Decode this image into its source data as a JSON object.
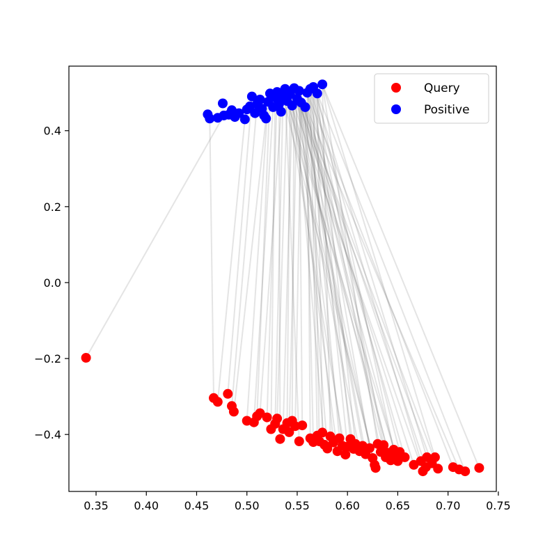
{
  "chart_data": {
    "type": "scatter",
    "title": "",
    "xlabel": "",
    "ylabel": "",
    "xlim": [
      0.323,
      0.748
    ],
    "ylim": [
      -0.55,
      0.57
    ],
    "grid": false,
    "legend": {
      "placement": "upper right",
      "entries": [
        "Query",
        "Positive"
      ]
    },
    "x_ticks": [
      "0.35",
      "0.40",
      "0.45",
      "0.50",
      "0.55",
      "0.60",
      "0.65",
      "0.70",
      "0.75"
    ],
    "y_ticks": [
      "0.4",
      "0.2",
      "0.0",
      "−0.2",
      "−0.4"
    ],
    "x_tick_values": [
      0.35,
      0.4,
      0.45,
      0.5,
      0.55,
      0.6,
      0.65,
      0.7,
      0.75
    ],
    "y_tick_values": [
      0.4,
      0.2,
      0.0,
      -0.2,
      -0.4
    ],
    "colors": {
      "query": "#ff0000",
      "positive": "#0000ff",
      "link": "#555555"
    },
    "series": [
      {
        "name": "Query",
        "points": [
          [
            0.34,
            -0.198
          ],
          [
            0.467,
            -0.304
          ],
          [
            0.471,
            -0.314
          ],
          [
            0.481,
            -0.293
          ],
          [
            0.485,
            -0.325
          ],
          [
            0.487,
            -0.34
          ],
          [
            0.5,
            -0.364
          ],
          [
            0.507,
            -0.368
          ],
          [
            0.51,
            -0.352
          ],
          [
            0.513,
            -0.344
          ],
          [
            0.52,
            -0.355
          ],
          [
            0.524,
            -0.386
          ],
          [
            0.528,
            -0.372
          ],
          [
            0.53,
            -0.358
          ],
          [
            0.533,
            -0.412
          ],
          [
            0.536,
            -0.386
          ],
          [
            0.54,
            -0.37
          ],
          [
            0.542,
            -0.394
          ],
          [
            0.545,
            -0.364
          ],
          [
            0.548,
            -0.378
          ],
          [
            0.552,
            -0.418
          ],
          [
            0.555,
            -0.376
          ],
          [
            0.563,
            -0.41
          ],
          [
            0.566,
            -0.42
          ],
          [
            0.57,
            -0.403
          ],
          [
            0.572,
            -0.418
          ],
          [
            0.575,
            -0.395
          ],
          [
            0.577,
            -0.427
          ],
          [
            0.58,
            -0.437
          ],
          [
            0.583,
            -0.405
          ],
          [
            0.586,
            -0.421
          ],
          [
            0.59,
            -0.444
          ],
          [
            0.592,
            -0.41
          ],
          [
            0.595,
            -0.43
          ],
          [
            0.598,
            -0.453
          ],
          [
            0.6,
            -0.432
          ],
          [
            0.603,
            -0.412
          ],
          [
            0.606,
            -0.438
          ],
          [
            0.608,
            -0.425
          ],
          [
            0.612,
            -0.444
          ],
          [
            0.615,
            -0.43
          ],
          [
            0.618,
            -0.452
          ],
          [
            0.622,
            -0.436
          ],
          [
            0.625,
            -0.462
          ],
          [
            0.627,
            -0.48
          ],
          [
            0.628,
            -0.488
          ],
          [
            0.63,
            -0.425
          ],
          [
            0.633,
            -0.446
          ],
          [
            0.636,
            -0.428
          ],
          [
            0.638,
            -0.46
          ],
          [
            0.64,
            -0.448
          ],
          [
            0.643,
            -0.468
          ],
          [
            0.646,
            -0.44
          ],
          [
            0.648,
            -0.456
          ],
          [
            0.65,
            -0.47
          ],
          [
            0.652,
            -0.446
          ],
          [
            0.657,
            -0.46
          ],
          [
            0.666,
            -0.48
          ],
          [
            0.673,
            -0.47
          ],
          [
            0.675,
            -0.497
          ],
          [
            0.678,
            -0.486
          ],
          [
            0.679,
            -0.46
          ],
          [
            0.684,
            -0.476
          ],
          [
            0.687,
            -0.46
          ],
          [
            0.69,
            -0.49
          ],
          [
            0.705,
            -0.486
          ],
          [
            0.711,
            -0.492
          ],
          [
            0.717,
            -0.497
          ],
          [
            0.731,
            -0.488
          ]
        ]
      },
      {
        "name": "Positive",
        "points": [
          [
            0.461,
            0.443
          ],
          [
            0.463,
            0.432
          ],
          [
            0.471,
            0.434
          ],
          [
            0.476,
            0.472
          ],
          [
            0.477,
            0.44
          ],
          [
            0.482,
            0.442
          ],
          [
            0.485,
            0.454
          ],
          [
            0.488,
            0.436
          ],
          [
            0.492,
            0.446
          ],
          [
            0.498,
            0.43
          ],
          [
            0.5,
            0.456
          ],
          [
            0.503,
            0.464
          ],
          [
            0.505,
            0.49
          ],
          [
            0.508,
            0.446
          ],
          [
            0.51,
            0.47
          ],
          [
            0.513,
            0.482
          ],
          [
            0.515,
            0.458
          ],
          [
            0.517,
            0.44
          ],
          [
            0.519,
            0.432
          ],
          [
            0.521,
            0.476
          ],
          [
            0.523,
            0.498
          ],
          [
            0.526,
            0.462
          ],
          [
            0.528,
            0.487
          ],
          [
            0.53,
            0.502
          ],
          [
            0.532,
            0.47
          ],
          [
            0.534,
            0.45
          ],
          [
            0.536,
            0.488
          ],
          [
            0.538,
            0.51
          ],
          [
            0.54,
            0.478
          ],
          [
            0.543,
            0.496
          ],
          [
            0.545,
            0.466
          ],
          [
            0.547,
            0.512
          ],
          [
            0.55,
            0.484
          ],
          [
            0.552,
            0.505
          ],
          [
            0.554,
            0.474
          ],
          [
            0.558,
            0.462
          ],
          [
            0.56,
            0.5
          ],
          [
            0.563,
            0.51
          ],
          [
            0.566,
            0.515
          ],
          [
            0.57,
            0.498
          ],
          [
            0.575,
            0.522
          ]
        ]
      }
    ],
    "links": [
      [
        0.34,
        -0.198,
        0.477,
        0.44
      ],
      [
        0.467,
        -0.304,
        0.463,
        0.432
      ],
      [
        0.471,
        -0.314,
        0.498,
        0.43
      ],
      [
        0.481,
        -0.293,
        0.505,
        0.49
      ],
      [
        0.485,
        -0.325,
        0.51,
        0.47
      ],
      [
        0.487,
        -0.34,
        0.519,
        0.432
      ],
      [
        0.5,
        -0.364,
        0.521,
        0.476
      ],
      [
        0.507,
        -0.368,
        0.526,
        0.462
      ],
      [
        0.51,
        -0.352,
        0.523,
        0.498
      ],
      [
        0.513,
        -0.344,
        0.534,
        0.45
      ],
      [
        0.52,
        -0.355,
        0.53,
        0.502
      ],
      [
        0.524,
        -0.386,
        0.528,
        0.487
      ],
      [
        0.528,
        -0.372,
        0.536,
        0.488
      ],
      [
        0.53,
        -0.358,
        0.54,
        0.478
      ],
      [
        0.533,
        -0.412,
        0.532,
        0.47
      ],
      [
        0.536,
        -0.386,
        0.545,
        0.466
      ],
      [
        0.54,
        -0.37,
        0.543,
        0.496
      ],
      [
        0.542,
        -0.394,
        0.55,
        0.484
      ],
      [
        0.545,
        -0.364,
        0.547,
        0.512
      ],
      [
        0.548,
        -0.378,
        0.554,
        0.474
      ],
      [
        0.552,
        -0.418,
        0.538,
        0.51
      ],
      [
        0.555,
        -0.376,
        0.552,
        0.505
      ],
      [
        0.563,
        -0.41,
        0.56,
        0.5
      ],
      [
        0.566,
        -0.42,
        0.558,
        0.462
      ],
      [
        0.57,
        -0.403,
        0.563,
        0.51
      ],
      [
        0.572,
        -0.418,
        0.566,
        0.515
      ],
      [
        0.575,
        -0.395,
        0.57,
        0.498
      ],
      [
        0.577,
        -0.427,
        0.547,
        0.512
      ],
      [
        0.58,
        -0.437,
        0.552,
        0.505
      ],
      [
        0.583,
        -0.405,
        0.575,
        0.522
      ],
      [
        0.586,
        -0.421,
        0.554,
        0.474
      ],
      [
        0.59,
        -0.444,
        0.545,
        0.466
      ],
      [
        0.592,
        -0.41,
        0.56,
        0.5
      ],
      [
        0.595,
        -0.43,
        0.55,
        0.484
      ],
      [
        0.598,
        -0.453,
        0.54,
        0.478
      ],
      [
        0.6,
        -0.432,
        0.563,
        0.51
      ],
      [
        0.603,
        -0.412,
        0.566,
        0.515
      ],
      [
        0.606,
        -0.438,
        0.558,
        0.462
      ],
      [
        0.608,
        -0.425,
        0.57,
        0.498
      ],
      [
        0.612,
        -0.444,
        0.543,
        0.496
      ],
      [
        0.615,
        -0.43,
        0.554,
        0.474
      ],
      [
        0.618,
        -0.452,
        0.552,
        0.505
      ],
      [
        0.622,
        -0.436,
        0.56,
        0.5
      ],
      [
        0.625,
        -0.462,
        0.547,
        0.512
      ],
      [
        0.627,
        -0.48,
        0.538,
        0.51
      ],
      [
        0.628,
        -0.488,
        0.536,
        0.488
      ],
      [
        0.63,
        -0.425,
        0.575,
        0.522
      ],
      [
        0.633,
        -0.446,
        0.563,
        0.51
      ],
      [
        0.636,
        -0.428,
        0.566,
        0.515
      ],
      [
        0.638,
        -0.46,
        0.55,
        0.484
      ],
      [
        0.64,
        -0.448,
        0.558,
        0.462
      ],
      [
        0.643,
        -0.468,
        0.545,
        0.466
      ],
      [
        0.646,
        -0.44,
        0.57,
        0.498
      ],
      [
        0.648,
        -0.456,
        0.554,
        0.474
      ],
      [
        0.65,
        -0.47,
        0.54,
        0.478
      ],
      [
        0.652,
        -0.446,
        0.56,
        0.5
      ],
      [
        0.657,
        -0.46,
        0.552,
        0.505
      ],
      [
        0.666,
        -0.48,
        0.547,
        0.512
      ],
      [
        0.673,
        -0.47,
        0.563,
        0.51
      ],
      [
        0.675,
        -0.497,
        0.543,
        0.496
      ],
      [
        0.678,
        -0.486,
        0.558,
        0.462
      ],
      [
        0.679,
        -0.46,
        0.566,
        0.515
      ],
      [
        0.684,
        -0.476,
        0.55,
        0.484
      ],
      [
        0.687,
        -0.46,
        0.575,
        0.522
      ],
      [
        0.69,
        -0.49,
        0.554,
        0.474
      ],
      [
        0.705,
        -0.486,
        0.56,
        0.5
      ],
      [
        0.711,
        -0.492,
        0.552,
        0.505
      ],
      [
        0.717,
        -0.497,
        0.57,
        0.498
      ],
      [
        0.731,
        -0.488,
        0.575,
        0.522
      ]
    ]
  }
}
